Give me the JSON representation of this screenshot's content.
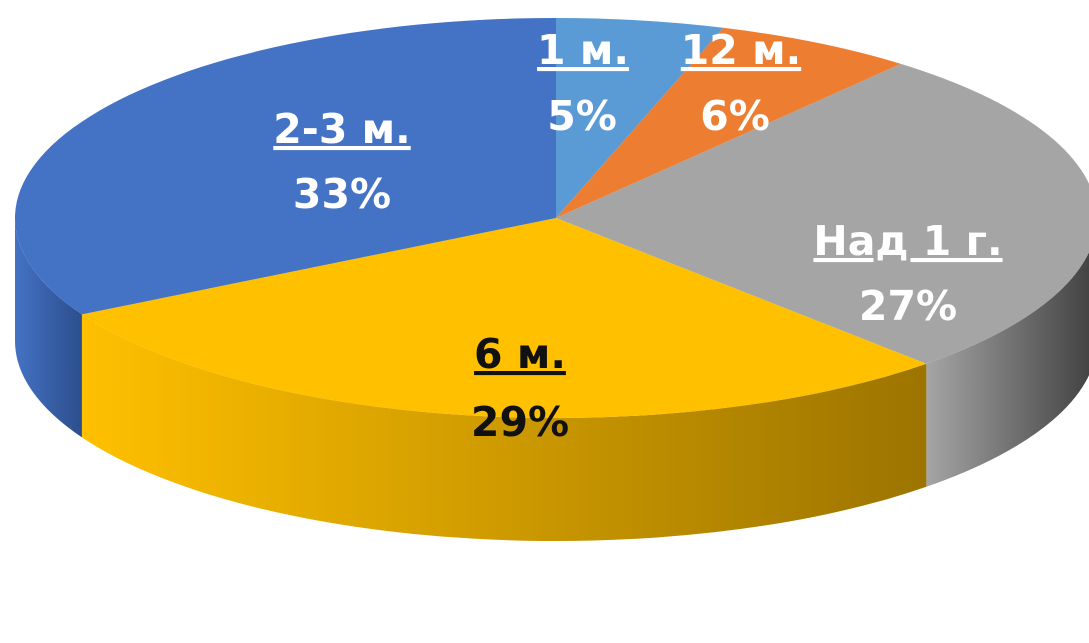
{
  "chart_data": {
    "type": "pie",
    "title": "",
    "legend": "none",
    "slices": [
      {
        "label": "1 м.",
        "value": 5,
        "value_label": "5%",
        "color": "#5B9BD5",
        "side_color": "#3E6F9E",
        "text_color": "#ffffff"
      },
      {
        "label": "12 м.",
        "value": 6,
        "value_label": "6%",
        "color": "#ED7D31",
        "side_color": "#A0531F",
        "text_color": "#ffffff"
      },
      {
        "label": "Над 1 г.",
        "value": 27,
        "value_label": "27%",
        "color": "#A5A5A5",
        "side_color": "#3F3F3F",
        "text_color": "#ffffff"
      },
      {
        "label": "6 м.",
        "value": 29,
        "value_label": "29%",
        "color": "#FFC000",
        "side_color": "#9C7400",
        "text_color": "#111111"
      },
      {
        "label": "2-3 м.",
        "value": 33,
        "value_label": "33%",
        "color": "#4472C4",
        "side_color": "#2C4E8C",
        "text_color": "#ffffff"
      }
    ]
  }
}
